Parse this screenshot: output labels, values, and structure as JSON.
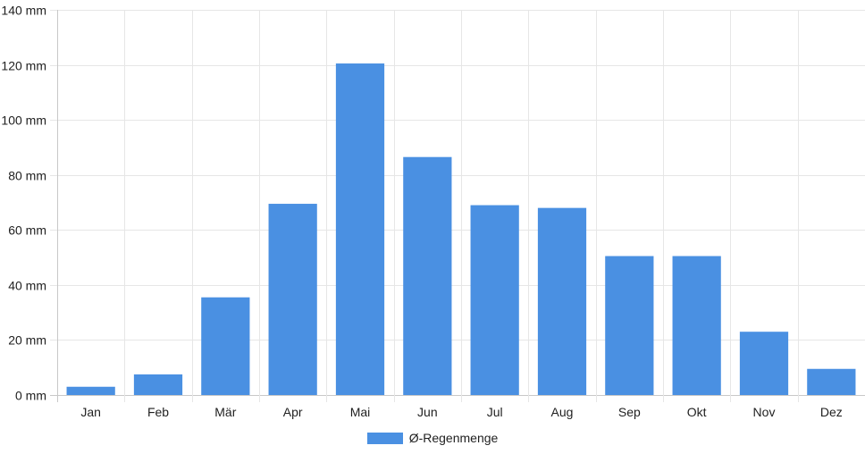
{
  "chart_data": {
    "type": "bar",
    "categories": [
      "Jan",
      "Feb",
      "Mär",
      "Apr",
      "Mai",
      "Jun",
      "Jul",
      "Aug",
      "Sep",
      "Okt",
      "Nov",
      "Dez"
    ],
    "series": [
      {
        "name": "Ø-Regenmenge",
        "values": [
          3,
          7.5,
          35.5,
          69.5,
          120.5,
          86.5,
          69,
          68,
          50.5,
          50.5,
          23,
          9.5
        ]
      }
    ],
    "ylim": [
      0,
      140
    ],
    "yticks": [
      0,
      20,
      40,
      60,
      80,
      100,
      120,
      140
    ],
    "ytick_suffix": " mm",
    "grid": true,
    "legend_position": "bottom-center",
    "colors": {
      "bar": "#4a90e2",
      "grid": "#e6e6e6",
      "axis": "#c8c8c8"
    }
  }
}
